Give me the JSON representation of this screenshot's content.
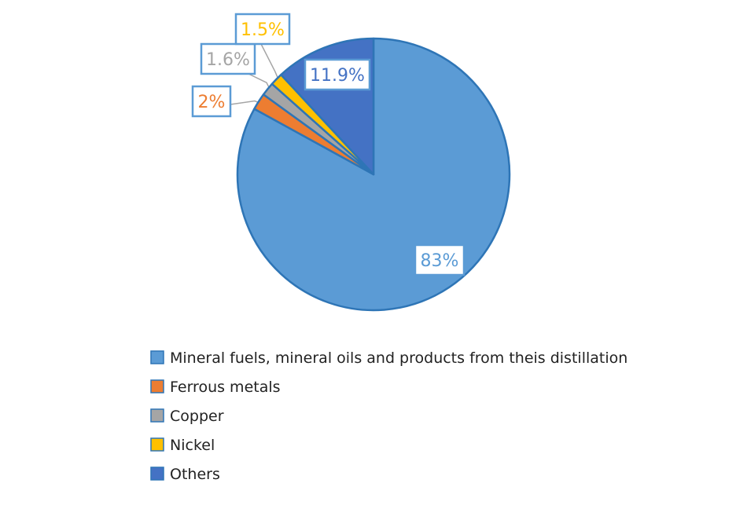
{
  "chart_data": {
    "type": "pie",
    "slices": [
      {
        "name": "Mineral fuels, mineral oils and products from theis distillation",
        "value": 83,
        "label": "83%",
        "color": "#5B9BD5"
      },
      {
        "name": "Ferrous metals",
        "value": 2,
        "label": "2%",
        "color": "#ED7D31"
      },
      {
        "name": "Copper",
        "value": 1.6,
        "label": "1.6%",
        "color": "#A5A5A5"
      },
      {
        "name": "Nickel",
        "value": 1.5,
        "label": "1.5%",
        "color": "#FFC000"
      },
      {
        "name": "Others",
        "value": 11.9,
        "label": "11.9%",
        "color": "#4472C4"
      }
    ],
    "legend_position": "bottom",
    "border_color": "#2E75B6",
    "label_box_border": "#5B9BD5"
  }
}
